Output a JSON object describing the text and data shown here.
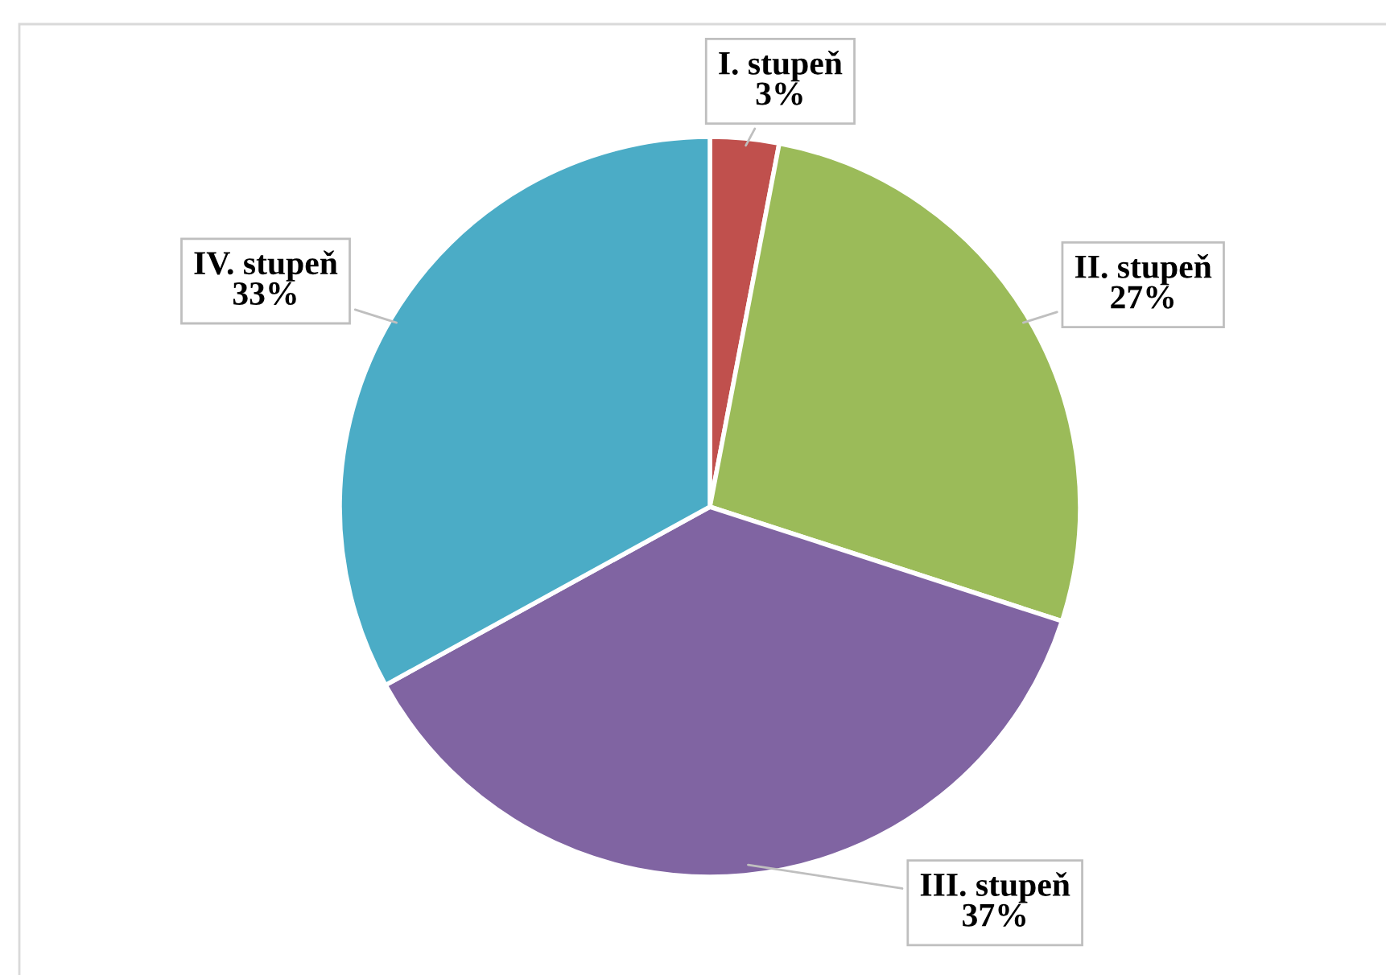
{
  "chart_data": {
    "type": "pie",
    "categories": [
      "I. stupeň",
      "II. stupeň",
      "III. stupeň",
      "IV. stupeň"
    ],
    "values": [
      3,
      27,
      37,
      33
    ],
    "colors": [
      "#c0504d",
      "#9bbb59",
      "#8064a2",
      "#4bacc6"
    ],
    "value_labels": [
      "3%",
      "27%",
      "37%",
      "33%"
    ],
    "legend": false
  }
}
